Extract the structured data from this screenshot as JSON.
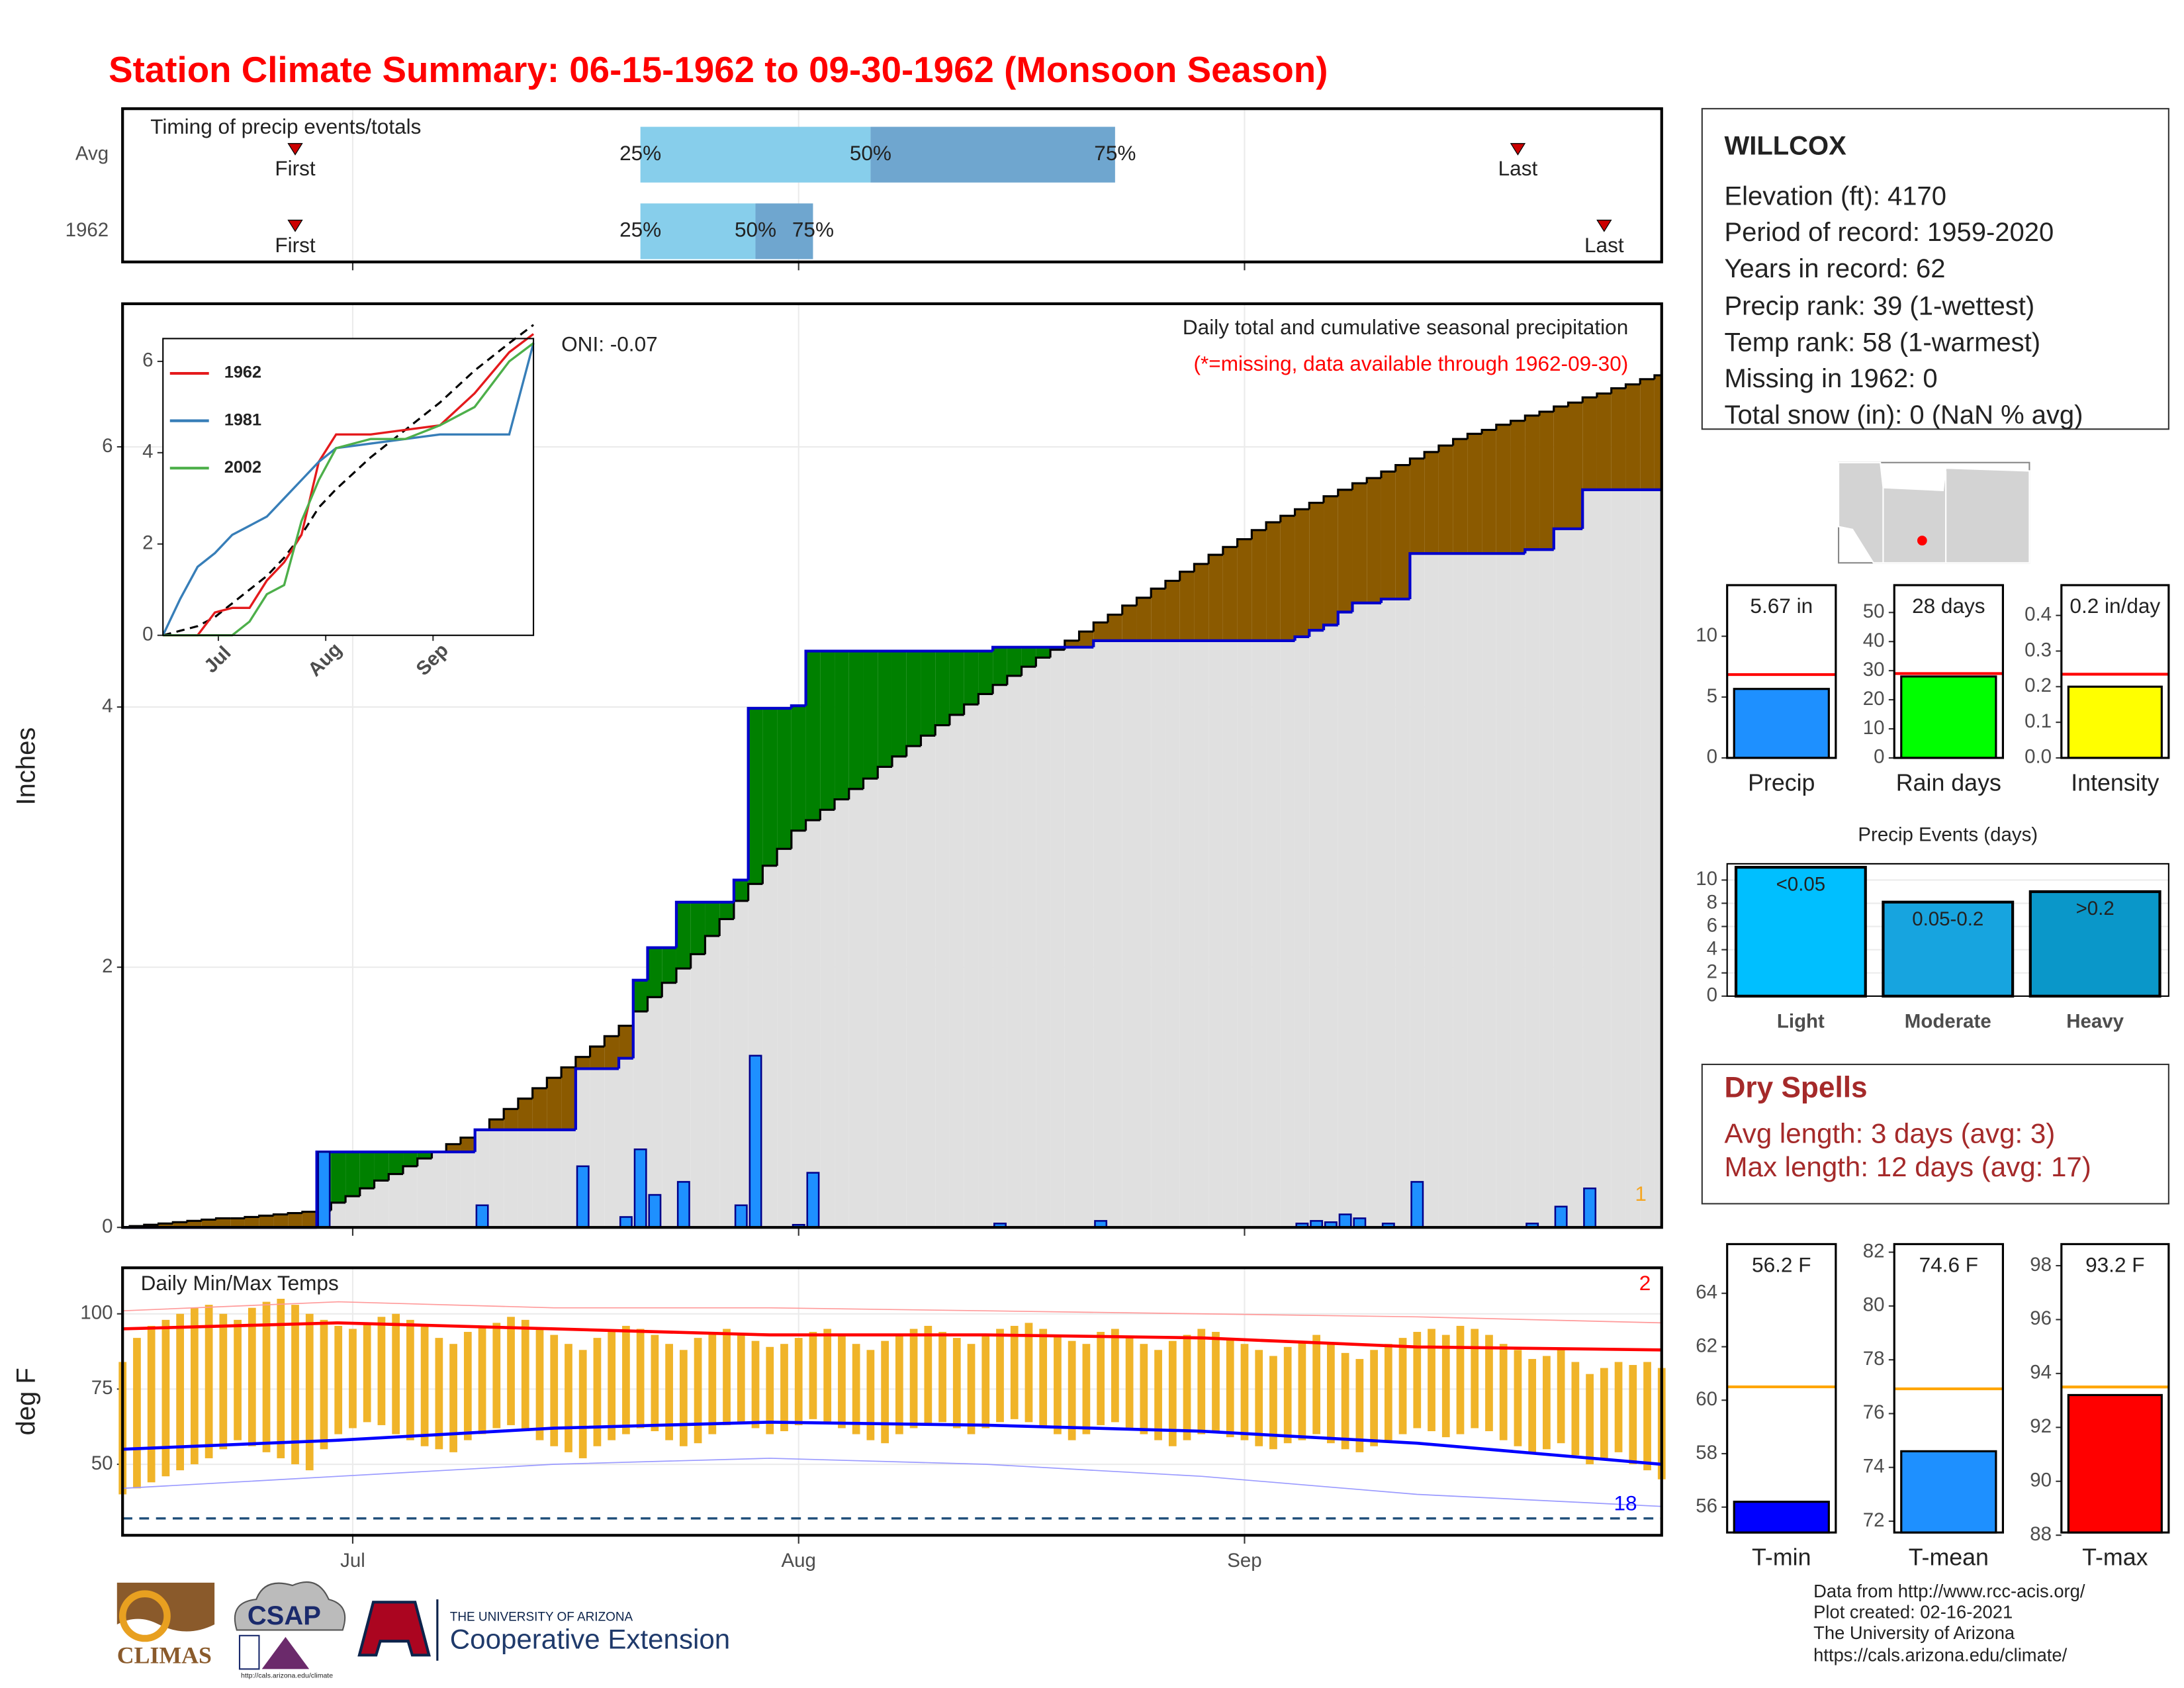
{
  "title": "Station Climate Summary: 06-15-1962 to 09-30-1962 (Monsoon Season)",
  "station": {
    "name": "WILLCOX",
    "lines": [
      "Elevation (ft): 4170",
      "Period of record: 1959-2020",
      "Years in record: 62",
      "Precip rank: 39 (1-wettest)",
      "Temp rank: 58 (1-warmest)",
      "Missing in 1962: 0",
      "Total snow (in): 0 (NaN % avg)"
    ]
  },
  "dry_spells": {
    "title": "Dry Spells",
    "lines": [
      "Avg length: 3 days (avg: 3)",
      "Max length: 12 days (avg: 17)"
    ]
  },
  "footer": {
    "lines": [
      "Data from http://www.rcc-acis.org/",
      "Plot created: 02-16-2021",
      "The University of Arizona",
      "https://cals.arizona.edu/climate/"
    ]
  },
  "logos": [
    "CLIMAS",
    "CSAP",
    "http://cals.arizona.edu/climate",
    "THE UNIVERSITY OF ARIZONA",
    "Cooperative Extension"
  ],
  "chart_data": [
    {
      "type": "timing",
      "title": "Timing of precip events/totals",
      "xlim": [
        0,
        107
      ],
      "xticks": [
        {
          "value": 16,
          "label": "Jul"
        },
        {
          "value": 47,
          "label": "Aug"
        },
        {
          "value": 78,
          "label": "Sep"
        }
      ],
      "labels": {
        "first": "First",
        "last": "Last",
        "p25": "25%",
        "p50": "50%",
        "p75": "75%"
      },
      "colors": [
        "#87ceeb",
        "#6fa6cf",
        "#cc0000"
      ],
      "rows": [
        {
          "name": "Avg",
          "first": 12,
          "p25": 36,
          "p50": 52,
          "p75": 69,
          "last": 97
        },
        {
          "name": "1962",
          "first": 12,
          "p25": 36,
          "p50": 44,
          "p75": 48,
          "last": 103
        }
      ]
    },
    {
      "type": "cumulative_precip",
      "title": "Daily total and cumulative seasonal precipitation",
      "subtitle": "(*=missing, data available through 1962-09-30)",
      "annotation": "ONI: -0.07",
      "missing_count": 1,
      "ylabel": "Inches",
      "xlim": [
        0,
        107
      ],
      "ylim": [
        0,
        7.1
      ],
      "yticks": [
        0,
        2,
        4,
        6
      ],
      "xticks": [
        {
          "value": 16,
          "label": "Jul"
        },
        {
          "value": 47,
          "label": "Aug"
        },
        {
          "value": 78,
          "label": "Sep"
        }
      ],
      "colors": {
        "bar": "#1e90ff",
        "cumulative": "#0000cc",
        "above": "#008000",
        "below": "#8b5a00",
        "base": "#e0e0e0"
      },
      "daily": {
        "x": [
          14,
          25,
          32,
          35,
          36,
          37,
          39,
          43,
          44,
          47,
          48,
          61,
          68,
          82,
          83,
          84,
          85,
          86,
          88,
          90,
          98,
          100,
          102
        ],
        "values": [
          0.58,
          0.17,
          0.47,
          0.08,
          0.6,
          0.25,
          0.35,
          0.17,
          1.32,
          0.02,
          0.42,
          0.03,
          0.05,
          0.03,
          0.05,
          0.04,
          0.1,
          0.07,
          0.03,
          0.35,
          0.03,
          0.16,
          0.3
        ]
      },
      "average_cumulative": [
        0,
        0.01,
        0.02,
        0.03,
        0.04,
        0.05,
        0.06,
        0.07,
        0.07,
        0.08,
        0.09,
        0.1,
        0.11,
        0.12,
        0.13,
        0.19,
        0.24,
        0.3,
        0.36,
        0.41,
        0.47,
        0.53,
        0.58,
        0.64,
        0.69,
        0.75,
        0.83,
        0.91,
        0.99,
        1.07,
        1.15,
        1.23,
        1.31,
        1.39,
        1.47,
        1.55,
        1.66,
        1.77,
        1.88,
        1.99,
        2.1,
        2.24,
        2.37,
        2.51,
        2.64,
        2.78,
        2.91,
        3.05,
        3.13,
        3.21,
        3.29,
        3.37,
        3.45,
        3.54,
        3.62,
        3.7,
        3.78,
        3.86,
        3.94,
        4.02,
        4.1,
        4.17,
        4.24,
        4.31,
        4.38,
        4.44,
        4.51,
        4.58,
        4.65,
        4.71,
        4.78,
        4.84,
        4.91,
        4.97,
        5.04,
        5.1,
        5.17,
        5.23,
        5.29,
        5.36,
        5.42,
        5.47,
        5.52,
        5.57,
        5.62,
        5.67,
        5.72,
        5.76,
        5.81,
        5.86,
        5.91,
        5.96,
        6.01,
        6.06,
        6.1,
        6.13,
        6.17,
        6.2,
        6.24,
        6.27,
        6.31,
        6.34,
        6.38,
        6.41,
        6.45,
        6.48,
        6.52,
        6.55
      ]
    },
    {
      "type": "line",
      "xlim": [
        0,
        107
      ],
      "ylim": [
        0,
        6.5
      ],
      "yticks": [
        0,
        2,
        4,
        6
      ],
      "xticks": [
        {
          "value": 16,
          "label": "Jul"
        },
        {
          "value": 47,
          "label": "Aug"
        },
        {
          "value": 78,
          "label": "Sep"
        }
      ],
      "x": [
        0,
        5,
        10,
        15,
        20,
        25,
        30,
        35,
        40,
        45,
        50,
        60,
        70,
        80,
        90,
        100,
        107
      ],
      "series": [
        {
          "name": "1962",
          "color": "#e41a1c",
          "values": [
            0,
            0,
            0,
            0.5,
            0.6,
            0.6,
            1.2,
            1.6,
            2.2,
            3.8,
            4.4,
            4.4,
            4.5,
            4.6,
            5.3,
            6.2,
            6.6
          ]
        },
        {
          "name": "1981",
          "color": "#377eb8",
          "values": [
            0,
            0.8,
            1.5,
            1.8,
            2.2,
            2.4,
            2.6,
            3.0,
            3.4,
            3.8,
            4.1,
            4.2,
            4.3,
            4.4,
            4.4,
            4.4,
            6.4
          ]
        },
        {
          "name": "2002",
          "color": "#4daf4a",
          "values": [
            0,
            0,
            0,
            0,
            0,
            0.3,
            0.9,
            1.1,
            2.5,
            3.4,
            4.1,
            4.3,
            4.3,
            4.6,
            5.0,
            6.0,
            6.4
          ]
        }
      ],
      "average": {
        "color": "#000000",
        "values": [
          0,
          0.1,
          0.2,
          0.4,
          0.7,
          1.0,
          1.3,
          1.7,
          2.2,
          2.8,
          3.2,
          3.9,
          4.5,
          5.1,
          5.8,
          6.4,
          6.8
        ]
      }
    },
    {
      "type": "temp_range",
      "title": "Daily Min/Max Temps",
      "ylabel": "deg F",
      "xlim": [
        0,
        107
      ],
      "ylim": [
        26.4,
        115.3
      ],
      "yticks": [
        50,
        75,
        100
      ],
      "xticks": [
        {
          "value": 16,
          "label": "Jul"
        },
        {
          "value": 47,
          "label": "Aug"
        },
        {
          "value": 78,
          "label": "Sep"
        }
      ],
      "colors": {
        "bar": "#f0b429",
        "avg_max": "#ff0000",
        "avg_min": "#0000ff",
        "record_high": "#ff9a9a",
        "record_low": "#9a9aff",
        "freeze": "#1f4e79"
      },
      "tmax": [
        84,
        92,
        96,
        98,
        100,
        102,
        103,
        100,
        98,
        102,
        104,
        105,
        103,
        100,
        98,
        96,
        95,
        97,
        99,
        100,
        98,
        96,
        92,
        90,
        94,
        96,
        97,
        99,
        98,
        95,
        93,
        90,
        88,
        92,
        94,
        96,
        95,
        93,
        90,
        88,
        92,
        94,
        95,
        93,
        91,
        89,
        90,
        92,
        94,
        95,
        93,
        90,
        88,
        91,
        93,
        95,
        96,
        94,
        92,
        90,
        93,
        95,
        96,
        97,
        95,
        93,
        91,
        90,
        94,
        95,
        92,
        90,
        88,
        91,
        93,
        95,
        94,
        92,
        90,
        88,
        86,
        89,
        91,
        93,
        90,
        87,
        85,
        88,
        90,
        92,
        94,
        95,
        93,
        96,
        95,
        93,
        90,
        88,
        85,
        86,
        88,
        84,
        80,
        82,
        84,
        83,
        84,
        82
      ],
      "tmin": [
        40,
        42,
        44,
        46,
        48,
        50,
        52,
        55,
        58,
        56,
        54,
        52,
        50,
        48,
        55,
        60,
        62,
        64,
        63,
        60,
        58,
        56,
        55,
        54,
        58,
        60,
        62,
        63,
        61,
        58,
        56,
        54,
        52,
        56,
        58,
        60,
        62,
        61,
        58,
        56,
        57,
        60,
        63,
        64,
        62,
        60,
        61,
        63,
        65,
        64,
        62,
        60,
        58,
        57,
        60,
        62,
        63,
        64,
        62,
        60,
        62,
        64,
        65,
        64,
        62,
        60,
        58,
        60,
        63,
        64,
        62,
        60,
        58,
        56,
        58,
        60,
        61,
        59,
        58,
        56,
        55,
        57,
        58,
        60,
        57,
        55,
        54,
        56,
        58,
        60,
        62,
        61,
        59,
        60,
        62,
        61,
        58,
        56,
        54,
        55,
        57,
        53,
        50,
        52,
        54,
        50,
        48,
        45
      ],
      "normals_x": [
        0,
        15,
        30,
        45,
        60,
        75,
        90,
        107
      ],
      "avg_max": [
        95,
        97,
        95,
        93,
        93,
        92,
        89,
        88
      ],
      "avg_min": [
        55,
        58,
        62,
        64,
        63,
        61,
        57,
        50
      ],
      "record_high": [
        101,
        104,
        102,
        102,
        101,
        100,
        99,
        97
      ],
      "record_low": [
        42,
        46,
        50,
        52,
        50,
        46,
        40,
        36
      ],
      "freeze_line": 32,
      "record_high_count": 2,
      "record_low_count": 18
    },
    {
      "type": "summary_bar",
      "category": "Precip",
      "value": 5.67,
      "value_label": "5.67 in",
      "average": 6.85,
      "color": "#1e90ff",
      "average_color": "#ff0000",
      "ylim": [
        0,
        14.2
      ],
      "yticks": [
        0,
        5,
        10
      ]
    },
    {
      "type": "summary_bar",
      "category": "Rain days",
      "value": 28,
      "value_label": "28 days",
      "average": 29,
      "color": "#00ff00",
      "average_color": "#ff0000",
      "ylim": [
        0,
        59.4
      ],
      "yticks": [
        0,
        10,
        20,
        30,
        40,
        50
      ]
    },
    {
      "type": "summary_bar",
      "category": "Intensity",
      "value": 0.2,
      "value_label": "0.2 in/day",
      "average": 0.235,
      "color": "#ffff00",
      "average_color": "#ff0000",
      "ylim": [
        0,
        0.485
      ],
      "yticks": [
        {
          "value": 0,
          "label": "0.0"
        },
        0.1,
        0.2,
        0.3,
        0.4
      ]
    },
    {
      "type": "bar",
      "title": "Precip Events (days)",
      "categories": [
        "Light",
        "Moderate",
        "Heavy"
      ],
      "bin_labels": [
        "<0.05",
        "0.05-0.2",
        ">0.2"
      ],
      "values": [
        11.1,
        8.1,
        9.0
      ],
      "colors": [
        "#00bfff",
        "#17a4df",
        "#0a97c9"
      ],
      "ylim": [
        0,
        11.4
      ],
      "yticks": [
        0,
        2,
        4,
        6,
        8,
        10
      ]
    },
    {
      "type": "summary_bar",
      "category": "T-min",
      "value": 56.2,
      "value_label": "56.2 F",
      "average": 60.5,
      "color": "#0000ff",
      "average_color": "#ffa500",
      "ylim": [
        55.05,
        65.84
      ],
      "yticks": [
        56,
        58,
        60,
        62,
        64
      ]
    },
    {
      "type": "summary_bar",
      "category": "T-mean",
      "value": 74.6,
      "value_label": "74.6 F",
      "average": 76.92,
      "color": "#1e90ff",
      "average_color": "#ffa500",
      "ylim": [
        71.58,
        82.3
      ],
      "yticks": [
        72,
        74,
        76,
        78,
        80,
        82
      ]
    },
    {
      "type": "summary_bar",
      "category": "T-max",
      "value": 93.2,
      "value_label": "93.2 F",
      "average": 93.5,
      "color": "#ff0000",
      "average_color": "#ffa500",
      "ylim": [
        88.1,
        98.8
      ],
      "yticks": [
        88,
        90,
        92,
        94,
        96,
        98
      ]
    }
  ]
}
